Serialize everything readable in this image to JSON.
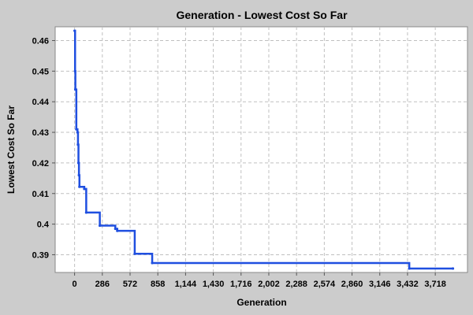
{
  "chart_data": {
    "type": "line",
    "title": "Generation - Lowest Cost So Far",
    "xlabel": "Generation",
    "ylabel": "Lowest Cost So Far",
    "xlim": [
      -200,
      4050
    ],
    "ylim": [
      0.3842,
      0.4645
    ],
    "x_ticks": [
      0,
      286,
      572,
      858,
      1144,
      1430,
      1716,
      2002,
      2288,
      2574,
      2860,
      3146,
      3432,
      3718
    ],
    "x_tick_labels": [
      "0",
      "286",
      "572",
      "858",
      "1,144",
      "1,430",
      "1,716",
      "2,002",
      "2,288",
      "2,574",
      "2,860",
      "3,146",
      "3,432",
      "3,718"
    ],
    "y_ticks": [
      0.39,
      0.4,
      0.41,
      0.42,
      0.43,
      0.44,
      0.45,
      0.46
    ],
    "y_tick_labels": [
      "0.39",
      "0.4",
      "0.41",
      "0.42",
      "0.43",
      "0.44",
      "0.45",
      "0.46"
    ],
    "grid": true,
    "line_style": "step",
    "legend": "none",
    "colors": {
      "background": "#cccccc",
      "plot_background": "#ffffff",
      "grid": "#c0c0c0",
      "series": "#1f4fe0",
      "text": "#000000"
    },
    "series": [
      {
        "points": [
          [
            0,
            0.4632
          ],
          [
            5,
            0.45
          ],
          [
            8,
            0.444
          ],
          [
            18,
            0.431
          ],
          [
            30,
            0.43
          ],
          [
            35,
            0.426
          ],
          [
            40,
            0.42
          ],
          [
            45,
            0.416
          ],
          [
            50,
            0.4122
          ],
          [
            100,
            0.4115
          ],
          [
            120,
            0.4038
          ],
          [
            260,
            0.3995
          ],
          [
            420,
            0.3985
          ],
          [
            440,
            0.3978
          ],
          [
            620,
            0.3903
          ],
          [
            800,
            0.3873
          ],
          [
            3450,
            0.3855
          ],
          [
            3900,
            0.3855
          ]
        ]
      }
    ]
  }
}
